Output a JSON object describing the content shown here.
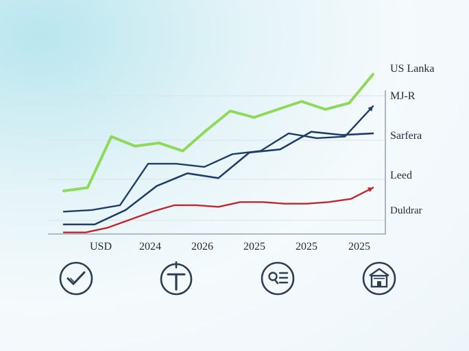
{
  "chart_data": {
    "type": "line",
    "title": "",
    "xlabel": "",
    "ylabel": "",
    "x_tick_labels": [
      "USD",
      "2024",
      "2026",
      "2025",
      "2025",
      "2025"
    ],
    "ylim": [
      0,
      100
    ],
    "grid": true,
    "legend_placement": "right",
    "series": [
      {
        "name": "US Lanka",
        "color": "#8fd95a",
        "values": [
          27,
          29,
          61,
          55,
          57,
          52,
          65,
          77,
          73,
          78,
          83,
          78,
          82,
          100
        ]
      },
      {
        "name": "MJ-R",
        "color": "#1f3d66",
        "values": [
          14,
          15,
          18,
          44,
          44,
          42,
          50,
          52,
          63,
          60,
          61,
          80
        ]
      },
      {
        "name": "Sarfera",
        "color": "#1f3d66",
        "values": [
          6,
          6,
          15,
          30,
          38,
          35,
          51,
          53,
          64,
          62,
          63
        ]
      },
      {
        "name": "Leed",
        "color": "#c0272d",
        "values": [
          1,
          1,
          4,
          9,
          14,
          18,
          18,
          17,
          20,
          20,
          19,
          19,
          20,
          22,
          29
        ]
      },
      {
        "name": "Duldrar",
        "color": "#1f3d66",
        "values": []
      }
    ]
  },
  "icons": [
    {
      "name": "check-shield-icon"
    },
    {
      "name": "tool-icon"
    },
    {
      "name": "search-list-icon"
    },
    {
      "name": "building-icon"
    }
  ],
  "colors": {
    "axis": "#9aa6b2",
    "grid": "#d9e1e8",
    "icon": "#2b3e52"
  }
}
